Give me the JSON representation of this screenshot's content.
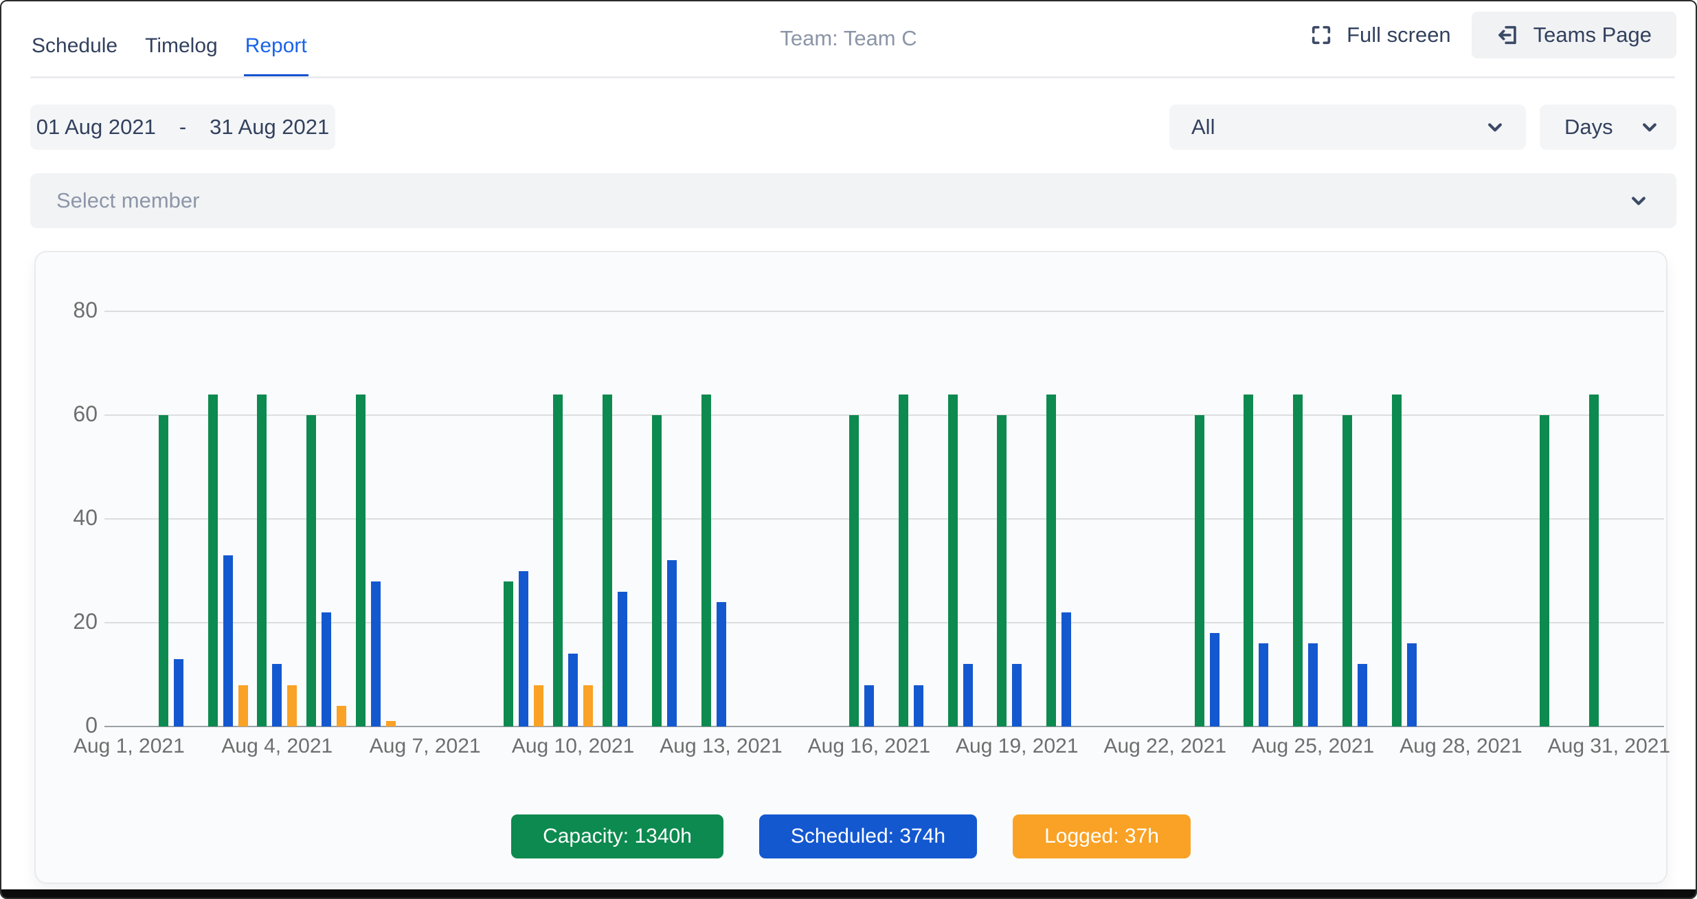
{
  "header": {
    "tabs": [
      {
        "label": "Schedule",
        "active": false
      },
      {
        "label": "Timelog",
        "active": false
      },
      {
        "label": "Report",
        "active": true
      }
    ],
    "title": "Team: Team C",
    "fullscreen_label": "Full screen",
    "teams_page_label": "Teams Page"
  },
  "filters": {
    "date_from": "01 Aug 2021",
    "date_separator": "-",
    "date_to": "31 Aug 2021",
    "category_selected": "All",
    "period_selected": "Days",
    "member_placeholder": "Select member"
  },
  "colors": {
    "capacity": "#0d8a4f",
    "scheduled": "#1458d0",
    "logged": "#f9a226",
    "active_tab": "#1b63e8",
    "tab_underline": "#1553cf",
    "navy_text": "#33415e",
    "muted_text": "#8b95a7"
  },
  "chart_data": {
    "type": "bar",
    "title": "",
    "x_unit": "Day of August 2021",
    "days": [
      1,
      2,
      3,
      4,
      5,
      6,
      7,
      8,
      9,
      10,
      11,
      12,
      13,
      14,
      15,
      16,
      17,
      18,
      19,
      20,
      21,
      22,
      23,
      24,
      25,
      26,
      27,
      28,
      29,
      30,
      31
    ],
    "series": [
      {
        "name": "Capacity",
        "color": "#0d8a4f",
        "values": [
          0,
          60,
          64,
          64,
          60,
          64,
          0,
          0,
          28,
          64,
          64,
          60,
          64,
          0,
          0,
          60,
          64,
          64,
          60,
          64,
          0,
          0,
          60,
          64,
          64,
          60,
          64,
          0,
          0,
          60,
          64
        ]
      },
      {
        "name": "Scheduled",
        "color": "#1458d0",
        "values": [
          0,
          13,
          33,
          12,
          22,
          28,
          0,
          0,
          30,
          14,
          26,
          32,
          24,
          0,
          0,
          8,
          8,
          12,
          12,
          22,
          0,
          0,
          18,
          16,
          16,
          12,
          16,
          0,
          0,
          0,
          0
        ]
      },
      {
        "name": "Logged",
        "color": "#f9a226",
        "values": [
          0,
          0,
          8,
          8,
          4,
          1,
          0,
          0,
          8,
          8,
          0,
          0,
          0,
          0,
          0,
          0,
          0,
          0,
          0,
          0,
          0,
          0,
          0,
          0,
          0,
          0,
          0,
          0,
          0,
          0,
          0
        ]
      }
    ],
    "xticks": [
      {
        "day": 1,
        "label": "Aug 1, 2021"
      },
      {
        "day": 4,
        "label": "Aug 4, 2021"
      },
      {
        "day": 7,
        "label": "Aug 7, 2021"
      },
      {
        "day": 10,
        "label": "Aug 10, 2021"
      },
      {
        "day": 13,
        "label": "Aug 13, 2021"
      },
      {
        "day": 16,
        "label": "Aug 16, 2021"
      },
      {
        "day": 19,
        "label": "Aug 19, 2021"
      },
      {
        "day": 22,
        "label": "Aug 22, 2021"
      },
      {
        "day": 25,
        "label": "Aug 25, 2021"
      },
      {
        "day": 28,
        "label": "Aug 28, 2021"
      },
      {
        "day": 31,
        "label": "Aug 31, 2021"
      }
    ],
    "yticks": [
      0,
      20,
      40,
      60,
      80
    ],
    "ylim": [
      0,
      80
    ],
    "grid": true,
    "legend_position": "bottom",
    "legend": [
      {
        "series": "Capacity",
        "label": "Capacity: 1340h",
        "color": "#0d8a4f"
      },
      {
        "series": "Scheduled",
        "label": "Scheduled: 374h",
        "color": "#1458d0"
      },
      {
        "series": "Logged",
        "label": "Logged: 37h",
        "color": "#f9a226"
      }
    ],
    "totals": {
      "capacity_h": 1340,
      "scheduled_h": 374,
      "logged_h": 37
    }
  }
}
